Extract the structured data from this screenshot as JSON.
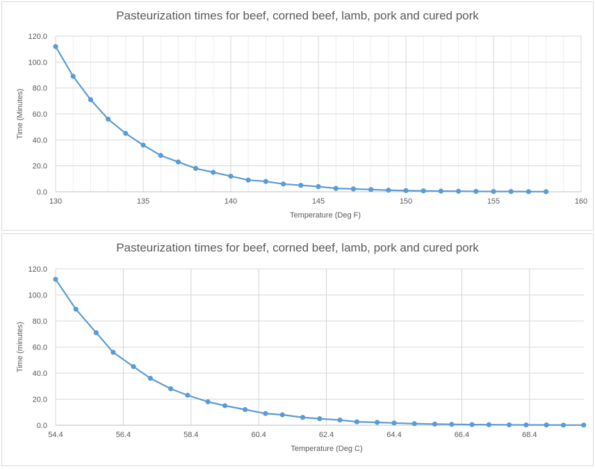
{
  "chart_data": [
    {
      "type": "line",
      "title": "Pasteurization times for beef, corned beef, lamb, pork and cured pork",
      "xlabel": "Temperature (Deg F)",
      "ylabel": "Time (Minutes)",
      "xlim": [
        130,
        160
      ],
      "ylim": [
        0,
        120
      ],
      "x_ticks": [
        "130",
        "135",
        "140",
        "145",
        "150",
        "155",
        "160"
      ],
      "y_ticks": [
        "0.0",
        "20.0",
        "40.0",
        "60.0",
        "80.0",
        "100.0",
        "120.0"
      ],
      "grid": true,
      "minor_x_grid": true,
      "legend": "none",
      "series": [
        {
          "name": "Time",
          "color": "#5b9bd5",
          "x": [
            130,
            131,
            132,
            133,
            134,
            135,
            136,
            137,
            138,
            139,
            140,
            141,
            142,
            143,
            144,
            145,
            146,
            147,
            148,
            149,
            150,
            151,
            152,
            153,
            154,
            155,
            156,
            157,
            158
          ],
          "values": [
            112.0,
            89.0,
            71.0,
            56.0,
            45.0,
            36.0,
            28.0,
            23.0,
            18.0,
            15.0,
            12.0,
            9.0,
            8.0,
            6.0,
            5.0,
            4.0,
            2.6,
            2.2,
            1.7,
            1.2,
            0.9,
            0.7,
            0.5,
            0.4,
            0.3,
            0.2,
            0.2,
            0.1,
            0.1
          ]
        }
      ]
    },
    {
      "type": "line",
      "title": "Pasteurization times for beef, corned beef, lamb, pork and cured pork",
      "xlabel": "Temperature (Deg C)",
      "ylabel": "Time (minutes)",
      "xlim": [
        54.4,
        70.0
      ],
      "ylim": [
        0,
        120
      ],
      "x_ticks": [
        "54.4",
        "56.4",
        "58.4",
        "60.4",
        "62.4",
        "64.4",
        "66.4",
        "68.4"
      ],
      "y_ticks": [
        "0.0",
        "20.0",
        "40.0",
        "60.0",
        "80.0",
        "100.0",
        "120.0"
      ],
      "grid": true,
      "legend": "none",
      "series": [
        {
          "name": "Time",
          "color": "#5b9bd5",
          "x": [
            54.4,
            55.0,
            55.6,
            56.1,
            56.7,
            57.2,
            57.8,
            58.3,
            58.9,
            59.4,
            60.0,
            60.6,
            61.1,
            61.7,
            62.2,
            62.8,
            63.3,
            63.9,
            64.4,
            65.0,
            65.6,
            66.1,
            66.7,
            67.2,
            67.8,
            68.3,
            68.9,
            69.4,
            70.0
          ],
          "values": [
            112.0,
            89.0,
            71.0,
            56.0,
            45.0,
            36.0,
            28.0,
            23.0,
            18.0,
            15.0,
            12.0,
            9.0,
            8.0,
            6.0,
            5.0,
            4.0,
            2.6,
            2.2,
            1.7,
            1.2,
            0.9,
            0.7,
            0.5,
            0.4,
            0.3,
            0.2,
            0.2,
            0.1,
            0.1
          ]
        }
      ]
    }
  ],
  "charts": [
    {
      "title": "Pasteurization times for beef, corned beef, lamb, pork and cured pork",
      "xlabel": "Temperature (Deg F)",
      "ylabel": "Time (Minutes)"
    },
    {
      "title": "Pasteurization times for beef, corned beef, lamb, pork and cured pork",
      "xlabel": "Temperature (Deg C)",
      "ylabel": "Time (minutes)"
    }
  ]
}
